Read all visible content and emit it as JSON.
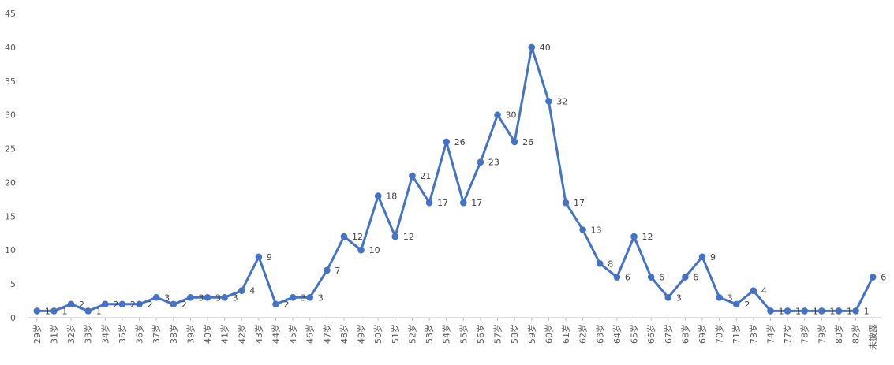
{
  "chart_data": {
    "type": "line",
    "title": "",
    "xlabel": "",
    "ylabel": "",
    "ylim": [
      0,
      45
    ],
    "yticks": [
      0,
      5,
      10,
      15,
      20,
      25,
      30,
      35,
      40,
      45
    ],
    "grid": false,
    "legend": "none",
    "series_color": "#4472c4",
    "categories": [
      "29岁",
      "31岁",
      "32岁",
      "33岁",
      "34岁",
      "35岁",
      "36岁",
      "37岁",
      "38岁",
      "39岁",
      "40岁",
      "41岁",
      "42岁",
      "43岁",
      "44岁",
      "45岁",
      "46岁",
      "47岁",
      "48岁",
      "49岁",
      "50岁",
      "51岁",
      "52岁",
      "53岁",
      "54岁",
      "55岁",
      "56岁",
      "57岁",
      "58岁",
      "59岁",
      "60岁",
      "61岁",
      "62岁",
      "63岁",
      "64岁",
      "65岁",
      "66岁",
      "67岁",
      "68岁",
      "69岁",
      "70岁",
      "71岁",
      "73岁",
      "74岁",
      "77岁",
      "78岁",
      "79岁",
      "80岁",
      "82岁",
      "未披露"
    ],
    "values": [
      1,
      1,
      2,
      1,
      2,
      2,
      2,
      3,
      2,
      3,
      3,
      3,
      4,
      9,
      2,
      3,
      3,
      7,
      12,
      10,
      18,
      12,
      21,
      17,
      26,
      17,
      23,
      30,
      26,
      40,
      32,
      17,
      13,
      8,
      6,
      12,
      6,
      3,
      6,
      9,
      3,
      2,
      4,
      1,
      1,
      1,
      1,
      1,
      1,
      6
    ]
  }
}
